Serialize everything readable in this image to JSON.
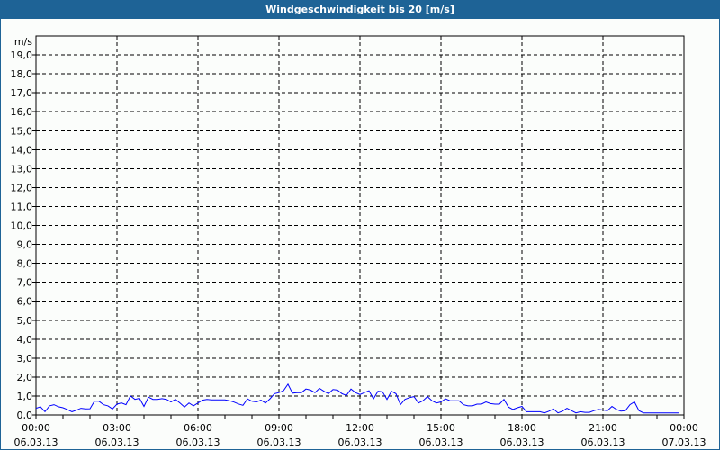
{
  "window": {
    "title": "Windgeschwindigkeit bis 20 [m/s]"
  },
  "chart_data": {
    "type": "line",
    "title": "Windgeschwindigkeit bis 20 [m/s]",
    "ylabel": "m/s",
    "xlabel": "",
    "ylim": [
      0,
      20
    ],
    "xlim": [
      "06.03.13 00:00",
      "07.03.13 00:00"
    ],
    "grid": true,
    "line_color": "#0000ff",
    "y_ticks": [
      "0,0",
      "1,0",
      "2,0",
      "3,0",
      "4,0",
      "5,0",
      "6,0",
      "7,0",
      "8,0",
      "9,0",
      "10,0",
      "11,0",
      "12,0",
      "13,0",
      "14,0",
      "15,0",
      "16,0",
      "17,0",
      "18,0",
      "19,0"
    ],
    "x_ticks": [
      {
        "time": "00:00",
        "date": "06.03.13"
      },
      {
        "time": "03:00",
        "date": "06.03.13"
      },
      {
        "time": "06:00",
        "date": "06.03.13"
      },
      {
        "time": "09:00",
        "date": "06.03.13"
      },
      {
        "time": "12:00",
        "date": "06.03.13"
      },
      {
        "time": "15:00",
        "date": "06.03.13"
      },
      {
        "time": "18:00",
        "date": "06.03.13"
      },
      {
        "time": "21:00",
        "date": "06.03.13"
      },
      {
        "time": "00:00",
        "date": "07.03.13"
      }
    ],
    "series": [
      {
        "points": [
          [
            "00:00",
            0.35
          ],
          [
            "00:10",
            0.43
          ],
          [
            "00:20",
            0.17
          ],
          [
            "00:30",
            0.48
          ],
          [
            "00:40",
            0.54
          ],
          [
            "00:50",
            0.43
          ],
          [
            "01:00",
            0.38
          ],
          [
            "01:10",
            0.28
          ],
          [
            "01:20",
            0.17
          ],
          [
            "01:30",
            0.25
          ],
          [
            "01:40",
            0.35
          ],
          [
            "01:50",
            0.32
          ],
          [
            "02:00",
            0.33
          ],
          [
            "02:10",
            0.72
          ],
          [
            "02:20",
            0.72
          ],
          [
            "02:30",
            0.54
          ],
          [
            "02:40",
            0.48
          ],
          [
            "02:50",
            0.32
          ],
          [
            "03:00",
            0.57
          ],
          [
            "03:10",
            0.63
          ],
          [
            "03:20",
            0.54
          ],
          [
            "03:30",
            1.0
          ],
          [
            "03:40",
            0.82
          ],
          [
            "03:50",
            0.88
          ],
          [
            "04:00",
            0.45
          ],
          [
            "04:10",
            0.94
          ],
          [
            "04:20",
            0.82
          ],
          [
            "04:30",
            0.82
          ],
          [
            "04:40",
            0.86
          ],
          [
            "04:50",
            0.82
          ],
          [
            "05:00",
            0.69
          ],
          [
            "05:10",
            0.82
          ],
          [
            "05:20",
            0.63
          ],
          [
            "05:30",
            0.42
          ],
          [
            "05:40",
            0.63
          ],
          [
            "05:50",
            0.48
          ],
          [
            "06:00",
            0.63
          ],
          [
            "06:10",
            0.78
          ],
          [
            "06:20",
            0.82
          ],
          [
            "06:30",
            0.8
          ],
          [
            "06:40",
            0.8
          ],
          [
            "06:50",
            0.8
          ],
          [
            "07:00",
            0.8
          ],
          [
            "07:10",
            0.75
          ],
          [
            "07:20",
            0.68
          ],
          [
            "07:30",
            0.58
          ],
          [
            "07:40",
            0.51
          ],
          [
            "07:50",
            0.85
          ],
          [
            "08:00",
            0.72
          ],
          [
            "08:10",
            0.69
          ],
          [
            "08:20",
            0.78
          ],
          [
            "08:30",
            0.63
          ],
          [
            "08:40",
            0.85
          ],
          [
            "08:50",
            1.12
          ],
          [
            "09:00",
            1.18
          ],
          [
            "09:10",
            1.28
          ],
          [
            "09:20",
            1.62
          ],
          [
            "09:30",
            1.15
          ],
          [
            "09:40",
            1.18
          ],
          [
            "09:50",
            1.18
          ],
          [
            "10:00",
            1.37
          ],
          [
            "10:10",
            1.31
          ],
          [
            "10:20",
            1.18
          ],
          [
            "10:30",
            1.4
          ],
          [
            "10:40",
            1.25
          ],
          [
            "10:50",
            1.12
          ],
          [
            "11:00",
            1.34
          ],
          [
            "11:10",
            1.31
          ],
          [
            "11:20",
            1.12
          ],
          [
            "11:30",
            1.03
          ],
          [
            "11:40",
            1.37
          ],
          [
            "11:50",
            1.18
          ],
          [
            "12:00",
            1.08
          ],
          [
            "12:10",
            1.18
          ],
          [
            "12:20",
            1.28
          ],
          [
            "12:30",
            0.85
          ],
          [
            "12:40",
            1.25
          ],
          [
            "12:50",
            1.22
          ],
          [
            "13:00",
            0.82
          ],
          [
            "13:10",
            1.25
          ],
          [
            "13:20",
            1.12
          ],
          [
            "13:30",
            0.54
          ],
          [
            "13:40",
            0.82
          ],
          [
            "13:50",
            0.91
          ],
          [
            "14:00",
            0.97
          ],
          [
            "14:10",
            0.63
          ],
          [
            "14:20",
            0.75
          ],
          [
            "14:30",
            0.97
          ],
          [
            "14:40",
            0.75
          ],
          [
            "14:50",
            0.63
          ],
          [
            "15:00",
            0.69
          ],
          [
            "15:10",
            0.85
          ],
          [
            "15:20",
            0.75
          ],
          [
            "15:30",
            0.75
          ],
          [
            "15:40",
            0.75
          ],
          [
            "15:50",
            0.54
          ],
          [
            "16:00",
            0.48
          ],
          [
            "16:10",
            0.48
          ],
          [
            "16:20",
            0.57
          ],
          [
            "16:30",
            0.57
          ],
          [
            "16:40",
            0.69
          ],
          [
            "16:50",
            0.6
          ],
          [
            "17:00",
            0.57
          ],
          [
            "17:10",
            0.57
          ],
          [
            "17:20",
            0.82
          ],
          [
            "17:30",
            0.42
          ],
          [
            "17:40",
            0.29
          ],
          [
            "17:50",
            0.38
          ],
          [
            "18:00",
            0.45
          ],
          [
            "18:10",
            0.17
          ],
          [
            "18:20",
            0.17
          ],
          [
            "18:30",
            0.17
          ],
          [
            "18:40",
            0.17
          ],
          [
            "18:50",
            0.11
          ],
          [
            "19:00",
            0.2
          ],
          [
            "19:10",
            0.32
          ],
          [
            "19:20",
            0.11
          ],
          [
            "19:30",
            0.2
          ],
          [
            "19:40",
            0.35
          ],
          [
            "19:50",
            0.23
          ],
          [
            "20:00",
            0.11
          ],
          [
            "20:10",
            0.17
          ],
          [
            "20:20",
            0.14
          ],
          [
            "20:30",
            0.14
          ],
          [
            "20:40",
            0.23
          ],
          [
            "20:50",
            0.29
          ],
          [
            "21:00",
            0.26
          ],
          [
            "21:10",
            0.23
          ],
          [
            "21:20",
            0.45
          ],
          [
            "21:30",
            0.29
          ],
          [
            "21:40",
            0.2
          ],
          [
            "21:50",
            0.23
          ],
          [
            "22:00",
            0.54
          ],
          [
            "22:10",
            0.69
          ],
          [
            "22:20",
            0.23
          ],
          [
            "22:30",
            0.11
          ],
          [
            "22:40",
            0.11
          ],
          [
            "22:50",
            0.11
          ],
          [
            "23:00",
            0.11
          ],
          [
            "23:10",
            0.11
          ],
          [
            "23:20",
            0.11
          ],
          [
            "23:30",
            0.11
          ],
          [
            "23:40",
            0.11
          ],
          [
            "23:50",
            0.11
          ]
        ]
      }
    ]
  }
}
